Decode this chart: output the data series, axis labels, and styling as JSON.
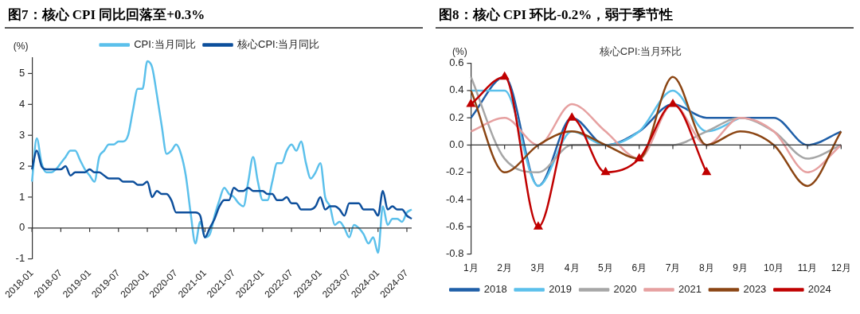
{
  "chart_data": [
    {
      "type": "line",
      "title": "图7：核心 CPI 同比回落至+0.3%",
      "ylabel": "(%)",
      "legend": "top",
      "marker": "none",
      "categories": [
        "2018-01",
        null,
        null,
        null,
        null,
        null,
        "2018-07",
        null,
        null,
        null,
        null,
        null,
        "2019-01",
        null,
        null,
        null,
        null,
        null,
        "2019-07",
        null,
        null,
        null,
        null,
        null,
        "2020-01",
        null,
        null,
        null,
        null,
        null,
        "2020-07",
        null,
        null,
        null,
        null,
        null,
        "2021-01",
        null,
        null,
        null,
        null,
        null,
        "2021-07",
        null,
        null,
        null,
        null,
        null,
        "2022-01",
        null,
        null,
        null,
        null,
        null,
        "2022-07",
        null,
        null,
        null,
        null,
        null,
        "2023-01",
        null,
        null,
        null,
        null,
        null,
        "2023-07",
        null,
        null,
        null,
        null,
        null,
        "2024-01",
        null,
        null,
        null,
        null,
        null,
        "2024-07",
        null
      ],
      "ylim": [
        -1,
        5.5
      ],
      "yticks": [
        -1,
        0,
        1,
        2,
        3,
        4,
        5
      ],
      "series": [
        {
          "name": "CPI:当月同比",
          "color": "#5bc0eb",
          "values": [
            1.5,
            2.9,
            2.1,
            1.8,
            1.8,
            1.9,
            2.1,
            2.3,
            2.5,
            2.5,
            2.2,
            1.9,
            1.7,
            1.5,
            2.3,
            2.5,
            2.7,
            2.7,
            2.8,
            2.8,
            3.0,
            3.8,
            4.5,
            4.5,
            5.4,
            5.2,
            4.3,
            3.3,
            2.4,
            2.5,
            2.7,
            2.4,
            1.7,
            0.5,
            -0.5,
            0.2,
            -0.3,
            -0.2,
            0.4,
            0.9,
            1.3,
            1.1,
            1.0,
            0.8,
            0.7,
            1.5,
            2.3,
            1.5,
            0.9,
            0.9,
            1.5,
            2.1,
            2.1,
            2.5,
            2.7,
            2.5,
            2.8,
            2.1,
            1.6,
            1.8,
            2.1,
            1.0,
            0.7,
            0.1,
            0.2,
            0.0,
            -0.3,
            0.1,
            0.0,
            -0.2,
            -0.5,
            -0.3,
            -0.8,
            0.7,
            0.1,
            0.3,
            0.3,
            0.2,
            0.5,
            0.6
          ]
        },
        {
          "name": "核心CPI:当月同比",
          "color": "#0d4f9c",
          "values": [
            1.9,
            2.5,
            2.0,
            1.9,
            1.9,
            1.9,
            1.9,
            2.0,
            1.7,
            1.8,
            1.8,
            1.8,
            1.9,
            1.8,
            1.8,
            1.7,
            1.6,
            1.6,
            1.6,
            1.5,
            1.5,
            1.5,
            1.4,
            1.4,
            1.5,
            1.0,
            1.2,
            1.1,
            1.1,
            0.9,
            0.5,
            0.5,
            0.5,
            0.5,
            0.5,
            0.4,
            -0.3,
            0.0,
            0.3,
            0.7,
            0.9,
            0.9,
            1.3,
            1.2,
            1.2,
            1.3,
            1.2,
            1.2,
            1.2,
            1.1,
            1.1,
            0.9,
            0.9,
            1.0,
            0.8,
            0.8,
            0.6,
            0.6,
            0.6,
            0.7,
            1.0,
            0.6,
            0.7,
            0.7,
            0.6,
            0.4,
            0.8,
            0.8,
            0.8,
            0.6,
            0.6,
            0.6,
            0.4,
            1.2,
            0.6,
            0.7,
            0.6,
            0.6,
            0.4,
            0.3
          ]
        }
      ]
    },
    {
      "type": "line",
      "title": "图8：核心 CPI 环比-0.2%，弱于季节性",
      "subtitle": "核心CPI:当月环比",
      "ylabel": "(%)",
      "legend": "bottom",
      "marker": "none",
      "categories": [
        "1月",
        "2月",
        "3月",
        "4月",
        "5月",
        "6月",
        "7月",
        "8月",
        "9月",
        "10月",
        "11月",
        "12月"
      ],
      "ylim": [
        -0.8,
        0.6
      ],
      "yticks": [
        -0.8,
        -0.6,
        -0.4,
        -0.2,
        {
          "value": 0,
          "label": "0.0"
        },
        0.2,
        0.4,
        0.6
      ],
      "series": [
        {
          "name": "2018",
          "color": "#1f5fa8",
          "values": [
            0.2,
            0.5,
            -0.3,
            0.2,
            0.0,
            0.1,
            0.3,
            0.2,
            0.2,
            0.2,
            0.0,
            0.1
          ]
        },
        {
          "name": "2019",
          "color": "#5bc0eb",
          "values": [
            0.4,
            0.4,
            -0.3,
            0.1,
            0.0,
            0.1,
            0.4,
            0.1,
            0.2,
            null,
            null,
            null
          ]
        },
        {
          "name": "2020",
          "color": "#a6a6a6",
          "values": [
            0.5,
            -0.1,
            -0.2,
            0.0,
            0.0,
            0.0,
            0.0,
            0.1,
            0.2,
            0.1,
            -0.1,
            0.0
          ]
        },
        {
          "name": "2021",
          "color": "#e6a0a0",
          "values": [
            0.1,
            0.2,
            0.0,
            0.3,
            0.1,
            -0.1,
            0.3,
            0.0,
            0.2,
            0.1,
            -0.2,
            0.0
          ]
        },
        {
          "name": "2023",
          "color": "#8b4513",
          "values": [
            0.4,
            -0.2,
            0.0,
            0.1,
            0.0,
            -0.1,
            0.5,
            0.0,
            0.1,
            0.0,
            -0.3,
            0.1
          ]
        },
        {
          "name": "2024",
          "color": "#c00000",
          "marker": "triangle",
          "values": [
            0.3,
            0.5,
            -0.6,
            0.2,
            -0.2,
            -0.1,
            0.3,
            -0.2,
            null,
            null,
            null,
            null
          ]
        }
      ]
    }
  ]
}
